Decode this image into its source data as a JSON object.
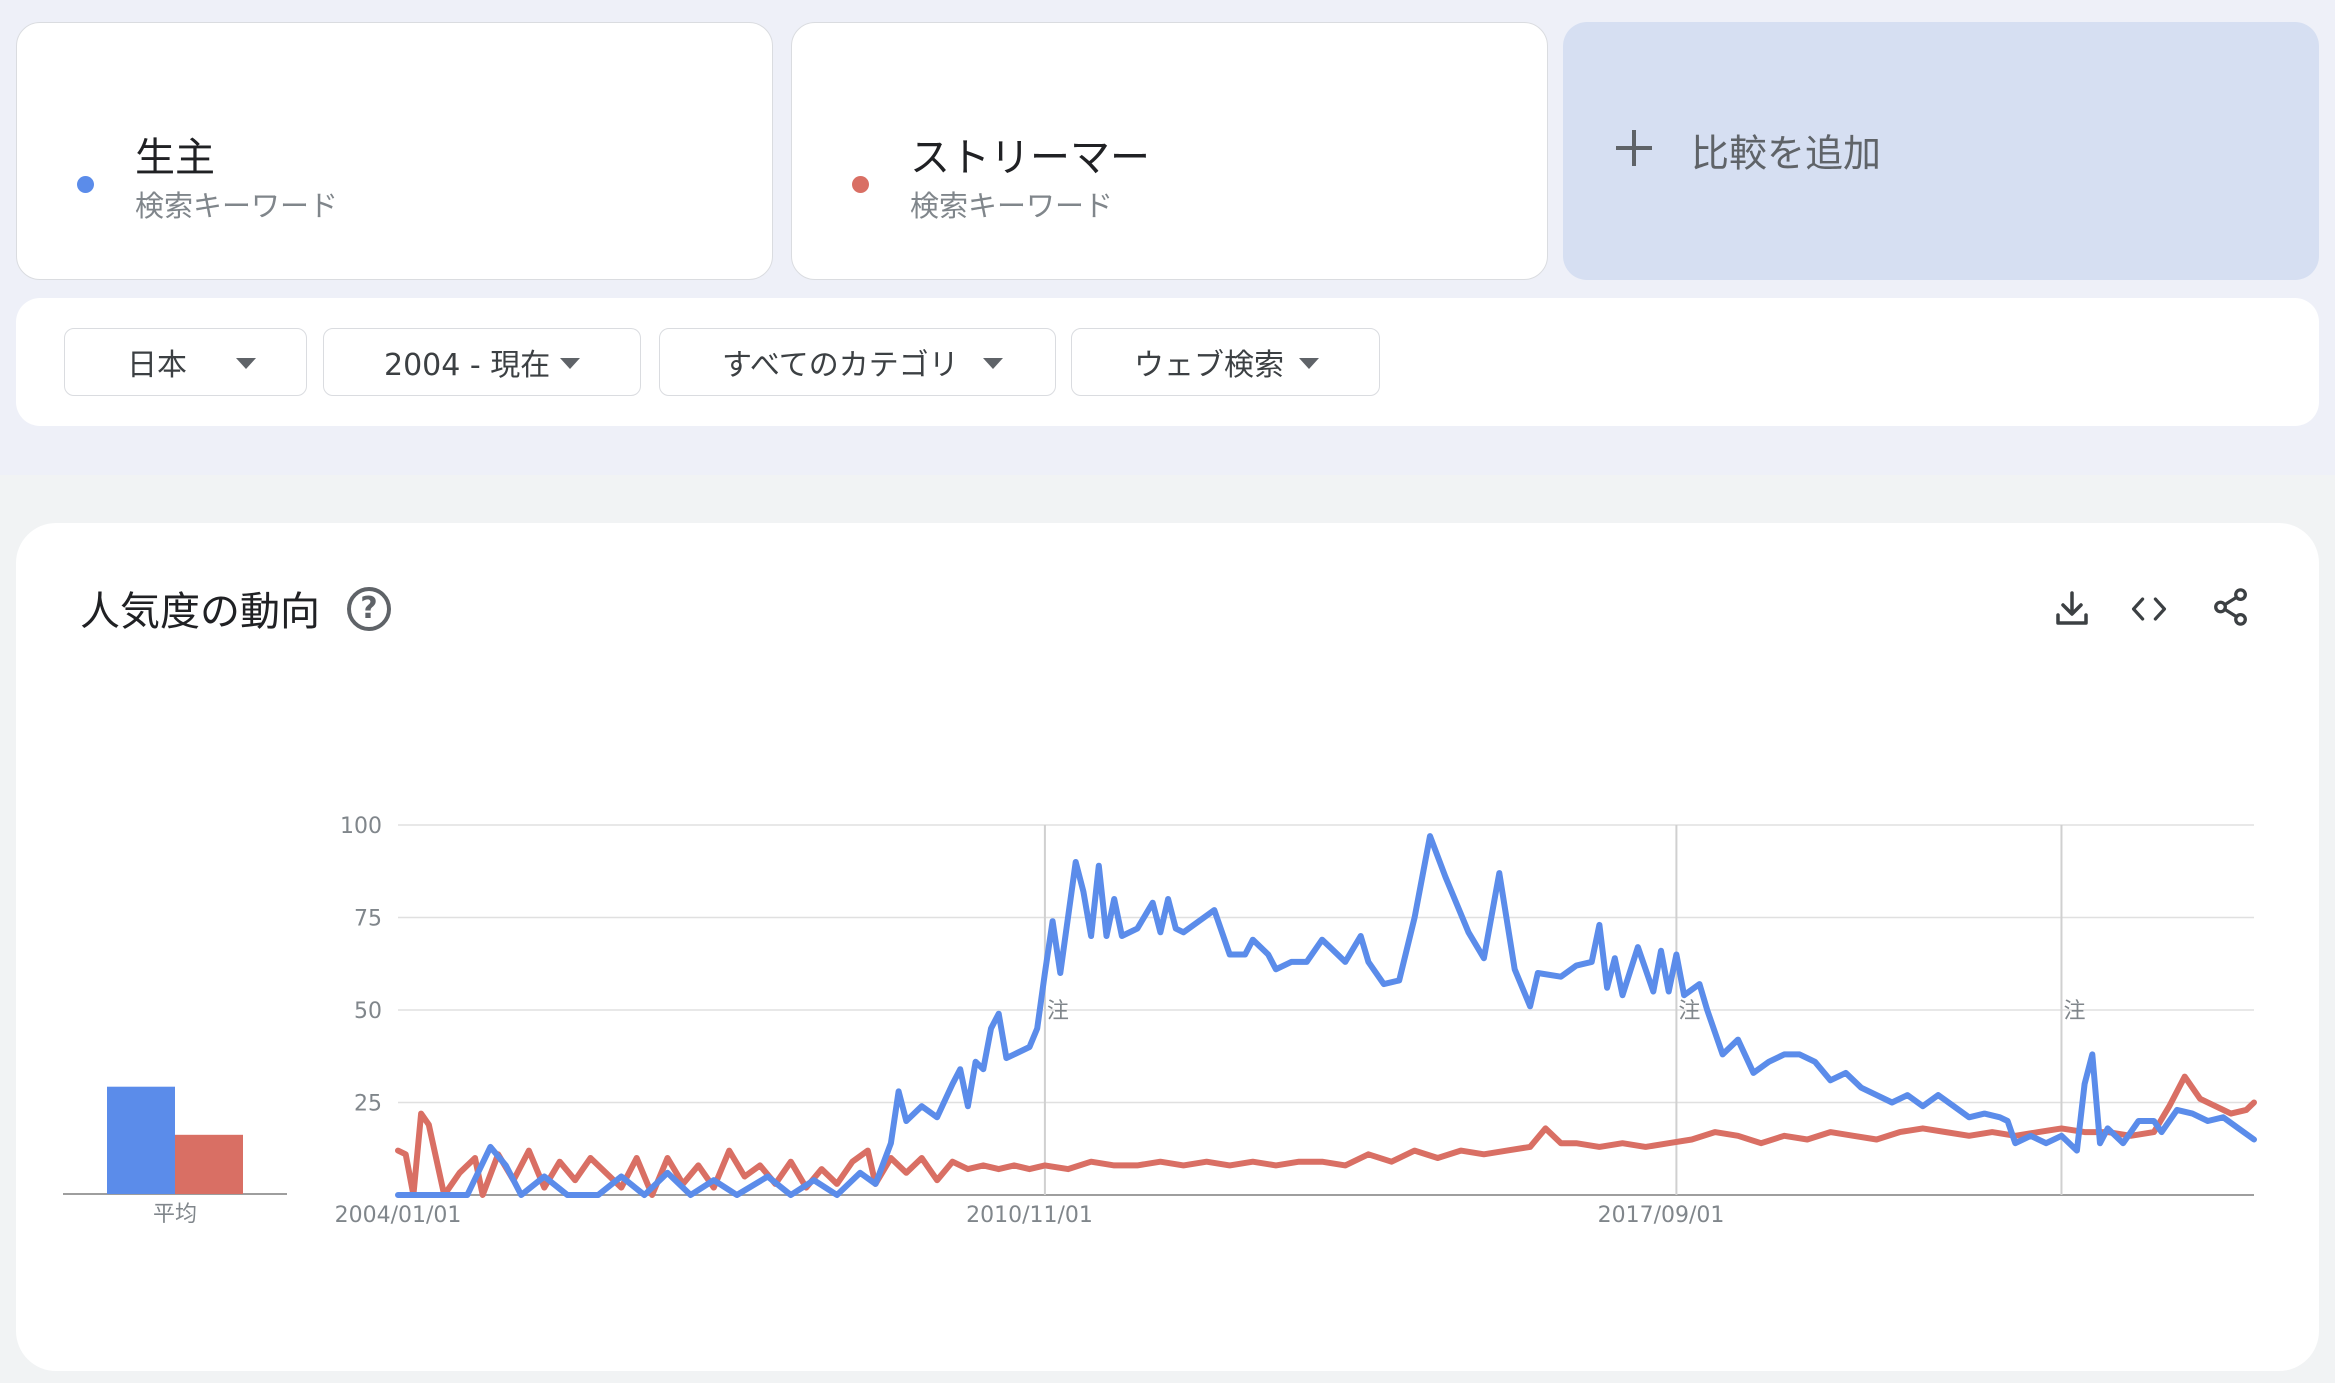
{
  "terms": [
    {
      "name": "生主",
      "type": "検索キーワード",
      "color": "#5b8cea"
    },
    {
      "name": "ストリーマー",
      "type": "検索キーワード",
      "color": "#d96f64"
    }
  ],
  "add_compare": "比較を追加",
  "filters": [
    {
      "label": "日本"
    },
    {
      "label": "2004 - 現在"
    },
    {
      "label": "すべてのカテゴリ"
    },
    {
      "label": "ウェブ検索"
    }
  ],
  "section": {
    "title": "人気度の動向",
    "help_icon": "help-circle-icon",
    "tools": [
      "download-icon",
      "embed-code-icon",
      "share-icon"
    ]
  },
  "chart_data": {
    "type": "line",
    "title": "",
    "x_ticks": [
      "2004/01/01",
      "2010/11/01",
      "2017/09/01"
    ],
    "y_ticks": [
      25,
      50,
      75,
      100
    ],
    "ylim": [
      0,
      100
    ],
    "grid": true,
    "average_label": "平均",
    "averages": [
      {
        "name": "生主",
        "value": 29,
        "color": "#5b8cea"
      },
      {
        "name": "ストリーマー",
        "value": 16,
        "color": "#d96f64"
      }
    ],
    "annotation_marker": "注",
    "annotations_x": [
      "2011/01",
      "2017/11",
      "2022/01"
    ],
    "x_range": [
      "2004-01",
      "2024-02"
    ],
    "series": [
      {
        "name": "生主",
        "color": "#5b8cea",
        "points": [
          [
            "2004-01",
            0
          ],
          [
            "2004-04",
            0
          ],
          [
            "2004-07",
            0
          ],
          [
            "2004-10",
            0
          ],
          [
            "2005-01",
            13
          ],
          [
            "2005-03",
            8
          ],
          [
            "2005-05",
            0
          ],
          [
            "2005-08",
            5
          ],
          [
            "2005-11",
            0
          ],
          [
            "2006-03",
            0
          ],
          [
            "2006-06",
            5
          ],
          [
            "2006-09",
            0
          ],
          [
            "2006-12",
            6
          ],
          [
            "2007-03",
            0
          ],
          [
            "2007-06",
            4
          ],
          [
            "2007-09",
            0
          ],
          [
            "2008-01",
            5
          ],
          [
            "2008-04",
            0
          ],
          [
            "2008-07",
            4
          ],
          [
            "2008-10",
            0
          ],
          [
            "2009-01",
            6
          ],
          [
            "2009-03",
            3
          ],
          [
            "2009-05",
            14
          ],
          [
            "2009-06",
            28
          ],
          [
            "2009-07",
            20
          ],
          [
            "2009-09",
            24
          ],
          [
            "2009-11",
            21
          ],
          [
            "2010-01",
            30
          ],
          [
            "2010-02",
            34
          ],
          [
            "2010-03",
            24
          ],
          [
            "2010-04",
            36
          ],
          [
            "2010-05",
            34
          ],
          [
            "2010-06",
            45
          ],
          [
            "2010-07",
            49
          ],
          [
            "2010-08",
            37
          ],
          [
            "2010-09",
            38
          ],
          [
            "2010-11",
            40
          ],
          [
            "2010-12",
            45
          ],
          [
            "2011-01",
            60
          ],
          [
            "2011-02",
            74
          ],
          [
            "2011-03",
            60
          ],
          [
            "2011-05",
            90
          ],
          [
            "2011-06",
            82
          ],
          [
            "2011-07",
            70
          ],
          [
            "2011-08",
            89
          ],
          [
            "2011-09",
            70
          ],
          [
            "2011-10",
            80
          ],
          [
            "2011-11",
            70
          ],
          [
            "2012-01",
            72
          ],
          [
            "2012-03",
            79
          ],
          [
            "2012-04",
            71
          ],
          [
            "2012-05",
            80
          ],
          [
            "2012-06",
            72
          ],
          [
            "2012-07",
            71
          ],
          [
            "2012-09",
            74
          ],
          [
            "2012-11",
            77
          ],
          [
            "2013-01",
            65
          ],
          [
            "2013-03",
            65
          ],
          [
            "2013-04",
            69
          ],
          [
            "2013-06",
            65
          ],
          [
            "2013-07",
            61
          ],
          [
            "2013-09",
            63
          ],
          [
            "2013-11",
            63
          ],
          [
            "2014-01",
            69
          ],
          [
            "2014-02",
            67
          ],
          [
            "2014-04",
            63
          ],
          [
            "2014-06",
            70
          ],
          [
            "2014-07",
            63
          ],
          [
            "2014-09",
            57
          ],
          [
            "2014-11",
            58
          ],
          [
            "2015-01",
            75
          ],
          [
            "2015-03",
            97
          ],
          [
            "2015-05",
            86
          ],
          [
            "2015-08",
            71
          ],
          [
            "2015-10",
            64
          ],
          [
            "2015-12",
            87
          ],
          [
            "2016-02",
            61
          ],
          [
            "2016-04",
            51
          ],
          [
            "2016-05",
            60
          ],
          [
            "2016-08",
            59
          ],
          [
            "2016-10",
            62
          ],
          [
            "2016-12",
            63
          ],
          [
            "2017-01",
            73
          ],
          [
            "2017-02",
            56
          ],
          [
            "2017-03",
            64
          ],
          [
            "2017-04",
            54
          ],
          [
            "2017-06",
            67
          ],
          [
            "2017-08",
            55
          ],
          [
            "2017-09",
            66
          ],
          [
            "2017-10",
            55
          ],
          [
            "2017-11",
            65
          ],
          [
            "2017-12",
            54
          ],
          [
            "2018-02",
            57
          ],
          [
            "2018-03",
            50
          ],
          [
            "2018-05",
            38
          ],
          [
            "2018-07",
            42
          ],
          [
            "2018-09",
            33
          ],
          [
            "2018-11",
            36
          ],
          [
            "2019-01",
            38
          ],
          [
            "2019-03",
            38
          ],
          [
            "2019-05",
            36
          ],
          [
            "2019-07",
            31
          ],
          [
            "2019-09",
            33
          ],
          [
            "2019-11",
            29
          ],
          [
            "2020-01",
            27
          ],
          [
            "2020-03",
            25
          ],
          [
            "2020-05",
            27
          ],
          [
            "2020-07",
            24
          ],
          [
            "2020-09",
            27
          ],
          [
            "2020-11",
            24
          ],
          [
            "2021-01",
            21
          ],
          [
            "2021-03",
            22
          ],
          [
            "2021-05",
            21
          ],
          [
            "2021-06",
            20
          ],
          [
            "2021-07",
            14
          ],
          [
            "2021-09",
            16
          ],
          [
            "2021-11",
            14
          ],
          [
            "2022-01",
            16
          ],
          [
            "2022-03",
            12
          ],
          [
            "2022-04",
            30
          ],
          [
            "2022-05",
            38
          ],
          [
            "2022-06",
            14
          ],
          [
            "2022-07",
            18
          ],
          [
            "2022-09",
            14
          ],
          [
            "2022-11",
            20
          ],
          [
            "2023-01",
            20
          ],
          [
            "2023-02",
            17
          ],
          [
            "2023-04",
            23
          ],
          [
            "2023-06",
            22
          ],
          [
            "2023-08",
            20
          ],
          [
            "2023-10",
            21
          ],
          [
            "2023-12",
            18
          ],
          [
            "2024-02",
            15
          ]
        ]
      },
      {
        "name": "ストリーマー",
        "color": "#d96f64",
        "points": [
          [
            "2004-01",
            12
          ],
          [
            "2004-02",
            11
          ],
          [
            "2004-03",
            0
          ],
          [
            "2004-04",
            22
          ],
          [
            "2004-05",
            19
          ],
          [
            "2004-07",
            0
          ],
          [
            "2004-09",
            6
          ],
          [
            "2004-11",
            10
          ],
          [
            "2004-12",
            0
          ],
          [
            "2005-02",
            11
          ],
          [
            "2005-04",
            4
          ],
          [
            "2005-06",
            12
          ],
          [
            "2005-08",
            2
          ],
          [
            "2005-10",
            9
          ],
          [
            "2005-12",
            4
          ],
          [
            "2006-02",
            10
          ],
          [
            "2006-04",
            6
          ],
          [
            "2006-06",
            2
          ],
          [
            "2006-08",
            10
          ],
          [
            "2006-10",
            0
          ],
          [
            "2006-12",
            10
          ],
          [
            "2007-02",
            3
          ],
          [
            "2007-04",
            8
          ],
          [
            "2007-06",
            2
          ],
          [
            "2007-08",
            12
          ],
          [
            "2007-10",
            5
          ],
          [
            "2007-12",
            8
          ],
          [
            "2008-02",
            3
          ],
          [
            "2008-04",
            9
          ],
          [
            "2008-06",
            2
          ],
          [
            "2008-08",
            7
          ],
          [
            "2008-10",
            3
          ],
          [
            "2008-12",
            9
          ],
          [
            "2009-02",
            12
          ],
          [
            "2009-03",
            3
          ],
          [
            "2009-05",
            10
          ],
          [
            "2009-07",
            6
          ],
          [
            "2009-09",
            10
          ],
          [
            "2009-11",
            4
          ],
          [
            "2010-01",
            9
          ],
          [
            "2010-03",
            7
          ],
          [
            "2010-05",
            8
          ],
          [
            "2010-07",
            7
          ],
          [
            "2010-09",
            8
          ],
          [
            "2010-11",
            7
          ],
          [
            "2011-01",
            8
          ],
          [
            "2011-04",
            7
          ],
          [
            "2011-07",
            9
          ],
          [
            "2011-10",
            8
          ],
          [
            "2012-01",
            8
          ],
          [
            "2012-04",
            9
          ],
          [
            "2012-07",
            8
          ],
          [
            "2012-10",
            9
          ],
          [
            "2013-01",
            8
          ],
          [
            "2013-04",
            9
          ],
          [
            "2013-07",
            8
          ],
          [
            "2013-10",
            9
          ],
          [
            "2014-01",
            9
          ],
          [
            "2014-04",
            8
          ],
          [
            "2014-07",
            11
          ],
          [
            "2014-10",
            9
          ],
          [
            "2015-01",
            12
          ],
          [
            "2015-04",
            10
          ],
          [
            "2015-07",
            12
          ],
          [
            "2015-10",
            11
          ],
          [
            "2016-01",
            12
          ],
          [
            "2016-04",
            13
          ],
          [
            "2016-06",
            18
          ],
          [
            "2016-08",
            14
          ],
          [
            "2016-10",
            14
          ],
          [
            "2017-01",
            13
          ],
          [
            "2017-04",
            14
          ],
          [
            "2017-07",
            13
          ],
          [
            "2017-10",
            14
          ],
          [
            "2018-01",
            15
          ],
          [
            "2018-04",
            17
          ],
          [
            "2018-07",
            16
          ],
          [
            "2018-10",
            14
          ],
          [
            "2019-01",
            16
          ],
          [
            "2019-04",
            15
          ],
          [
            "2019-07",
            17
          ],
          [
            "2019-10",
            16
          ],
          [
            "2020-01",
            15
          ],
          [
            "2020-04",
            17
          ],
          [
            "2020-07",
            18
          ],
          [
            "2020-10",
            17
          ],
          [
            "2021-01",
            16
          ],
          [
            "2021-04",
            17
          ],
          [
            "2021-07",
            16
          ],
          [
            "2021-10",
            17
          ],
          [
            "2022-01",
            18
          ],
          [
            "2022-04",
            17
          ],
          [
            "2022-07",
            17
          ],
          [
            "2022-10",
            16
          ],
          [
            "2023-01",
            17
          ],
          [
            "2023-03",
            24
          ],
          [
            "2023-05",
            32
          ],
          [
            "2023-07",
            26
          ],
          [
            "2023-09",
            24
          ],
          [
            "2023-11",
            22
          ],
          [
            "2024-01",
            23
          ],
          [
            "2024-02",
            25
          ]
        ]
      }
    ]
  }
}
